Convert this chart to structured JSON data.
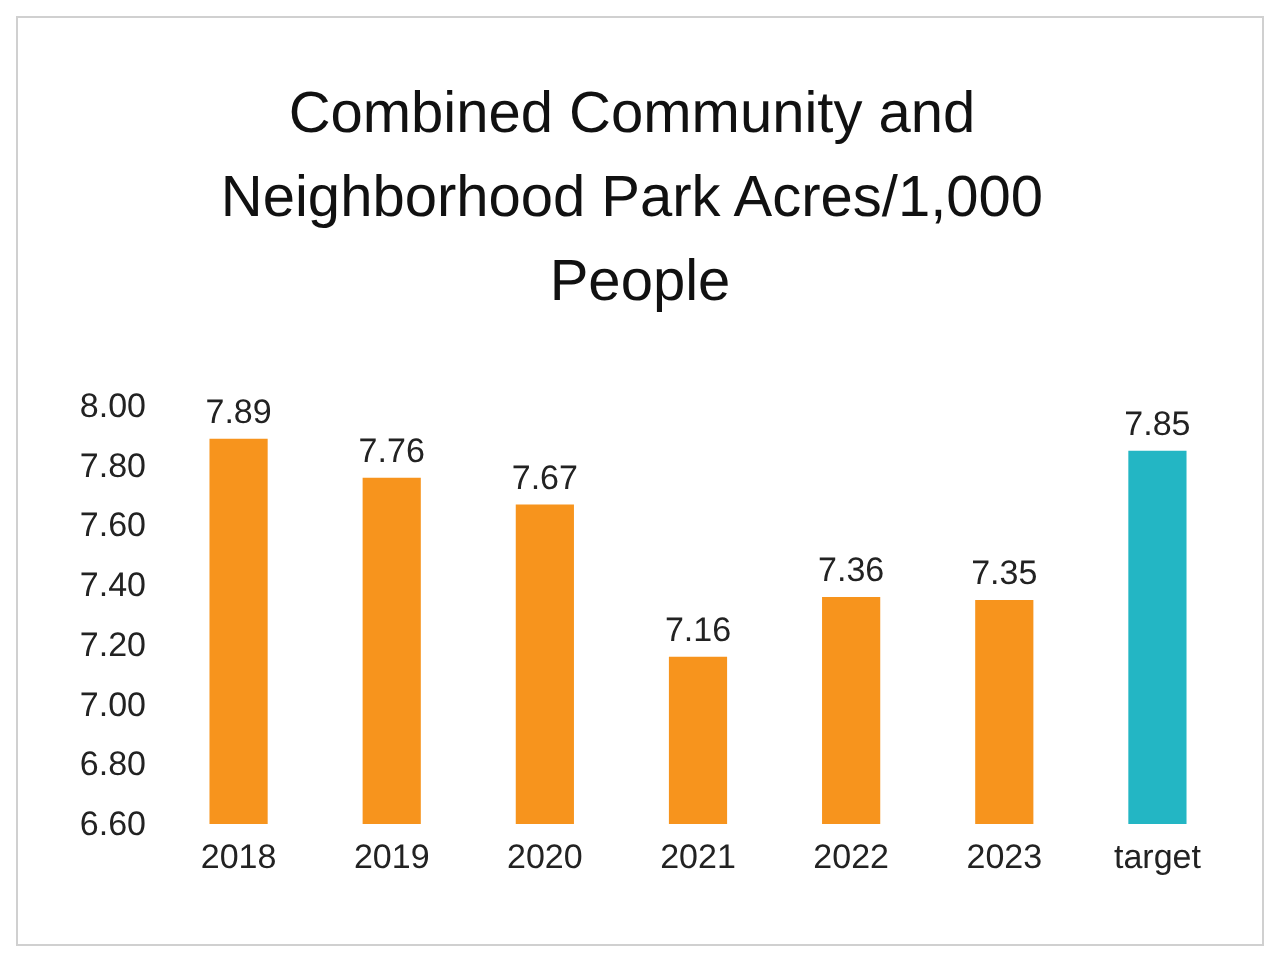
{
  "chart_data": {
    "type": "bar",
    "title": "Combined Community and Neighborhood Park Acres/1,000 People",
    "categories": [
      "2018",
      "2019",
      "2020",
      "2021",
      "2022",
      "2023",
      "target"
    ],
    "values": [
      7.89,
      7.76,
      7.67,
      7.16,
      7.36,
      7.35,
      7.85
    ],
    "colors": [
      "#f7941d",
      "#f7941d",
      "#f7941d",
      "#f7941d",
      "#f7941d",
      "#f7941d",
      "#23b6c4"
    ],
    "ylim": [
      6.6,
      8.0
    ],
    "yticks": [
      {
        "value": 6.6,
        "label": "6.60"
      },
      {
        "value": 6.8,
        "label": "6.80"
      },
      {
        "value": 7.0,
        "label": "7.00"
      },
      {
        "value": 7.2,
        "label": "7.20"
      },
      {
        "value": 7.4,
        "label": "7.40"
      },
      {
        "value": 7.6,
        "label": "7.60"
      },
      {
        "value": 7.8,
        "label": "7.80"
      },
      {
        "value": 8.0,
        "label": "8.00"
      }
    ],
    "grid": false,
    "data_labels": true
  }
}
